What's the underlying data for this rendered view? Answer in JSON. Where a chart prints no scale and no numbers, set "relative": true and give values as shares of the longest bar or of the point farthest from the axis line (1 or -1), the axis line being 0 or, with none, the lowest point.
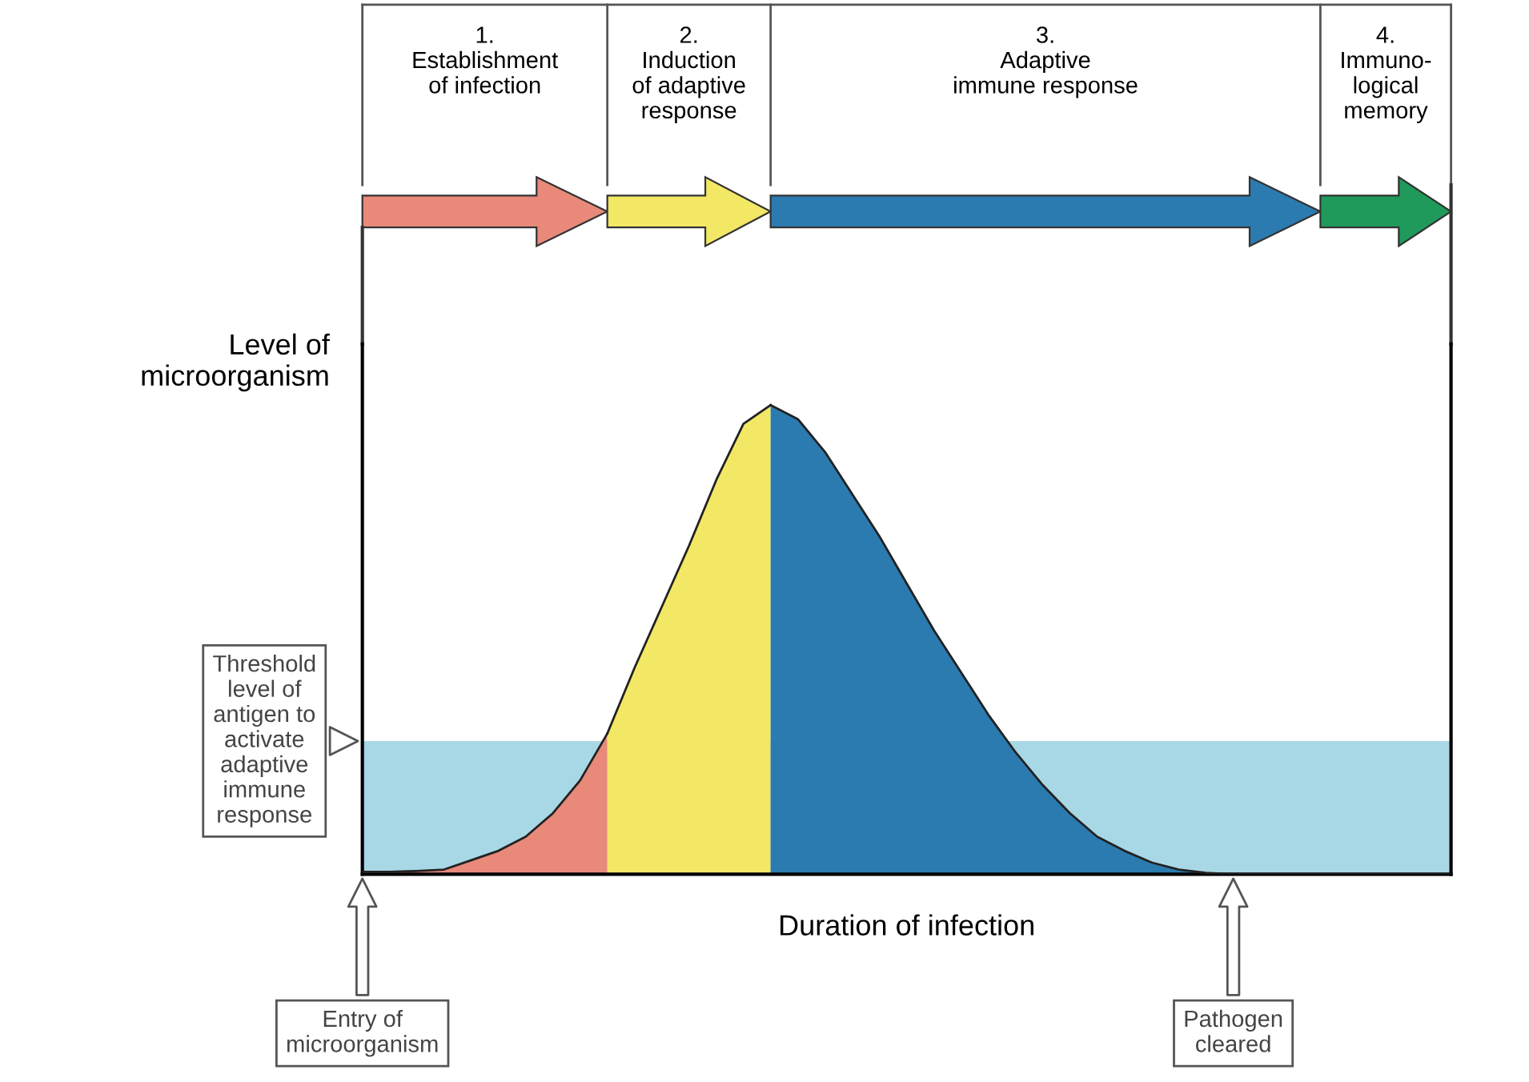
{
  "chart_data": {
    "type": "area",
    "relative": true,
    "xlabel": "Duration of infection",
    "ylabel": "Level of\nmicroorganism",
    "categories": [
      null,
      null,
      null,
      null,
      null,
      null,
      null,
      null,
      null,
      null,
      null,
      null,
      null,
      null,
      null,
      null,
      null,
      null,
      null,
      null,
      null,
      null,
      null,
      null,
      null,
      null,
      null,
      null,
      null,
      null,
      null,
      null,
      null,
      null,
      null,
      null,
      null,
      null,
      null,
      null,
      null
    ],
    "series": [
      {
        "color": "#e8897a",
        "values": [
          0.005,
          0.005,
          0.007,
          0.01,
          0.03,
          0.05,
          0.08,
          0.13,
          0.2,
          0.3,
          null,
          null,
          null,
          null,
          null,
          null,
          null,
          null,
          null,
          null,
          null,
          null,
          null,
          null,
          null,
          null,
          null,
          null,
          null,
          null,
          null,
          null,
          null,
          null,
          null,
          null,
          null,
          null,
          null,
          null,
          null
        ]
      },
      {
        "color": "#f2e865",
        "values": [
          null,
          null,
          null,
          null,
          null,
          null,
          null,
          null,
          null,
          0.3,
          0.44,
          0.57,
          0.7,
          0.84,
          0.96,
          1.0,
          null,
          null,
          null,
          null,
          null,
          null,
          null,
          null,
          null,
          null,
          null,
          null,
          null,
          null,
          null,
          null,
          null,
          null,
          null,
          null,
          null,
          null,
          null,
          null,
          null
        ]
      },
      {
        "color": "#2b7bb0",
        "values": [
          null,
          null,
          null,
          null,
          null,
          null,
          null,
          null,
          null,
          null,
          null,
          null,
          null,
          null,
          null,
          1.0,
          0.97,
          0.9,
          0.81,
          0.72,
          0.62,
          0.52,
          0.43,
          0.34,
          0.26,
          0.19,
          0.13,
          0.08,
          0.05,
          0.025,
          0.01,
          0.003,
          0,
          0,
          0,
          0,
          0,
          0,
          0,
          0,
          0
        ]
      }
    ],
    "bands": [
      {
        "axis": "y",
        "from": 0,
        "to": 0.284,
        "label": "Threshold\nlevel of\nantigen to\nactivate\nadaptive\nimmune\nresponse",
        "color": "#a8d8e6"
      }
    ],
    "annotations": [
      "1.\nEstablishment\nof infection",
      "2.\nInduction\nof adaptive\nresponse",
      "3.\nAdaptive\nimmune response",
      "4.\nImmuno-\nlogical\nmemory",
      "Entry of\nmicroorganism",
      "Pathogen\ncleared"
    ],
    "legend": false
  }
}
